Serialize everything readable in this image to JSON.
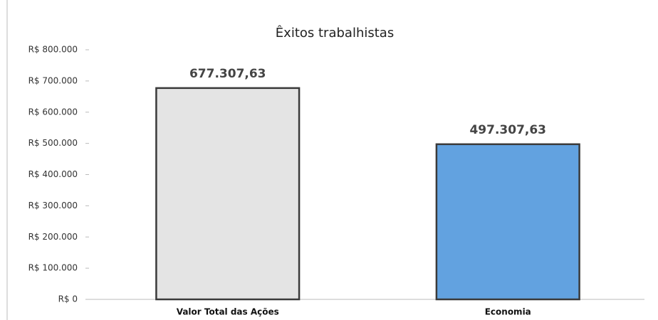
{
  "chart_data": {
    "type": "bar",
    "title": "Êxitos trabalhistas",
    "categories": [
      "Valor Total das Ações",
      "Economia"
    ],
    "values": [
      677307.63,
      497307.63
    ],
    "value_labels": [
      "677.307,63",
      "497.307,63"
    ],
    "colors": [
      "#e4e4e4",
      "#62a2e0"
    ],
    "ylim": [
      0,
      800000
    ],
    "yticks": [
      {
        "value": 0,
        "label": "R$ 0"
      },
      {
        "value": 100000,
        "label": "R$ 100.000"
      },
      {
        "value": 200000,
        "label": "R$ 200.000"
      },
      {
        "value": 300000,
        "label": "R$ 300.000"
      },
      {
        "value": 400000,
        "label": "R$ 400.000"
      },
      {
        "value": 500000,
        "label": "R$ 500.000"
      },
      {
        "value": 600000,
        "label": "R$ 600.000"
      },
      {
        "value": 700000,
        "label": "R$ 700.000"
      },
      {
        "value": 800000,
        "label": "R$ 800.000"
      }
    ],
    "grid": false
  }
}
